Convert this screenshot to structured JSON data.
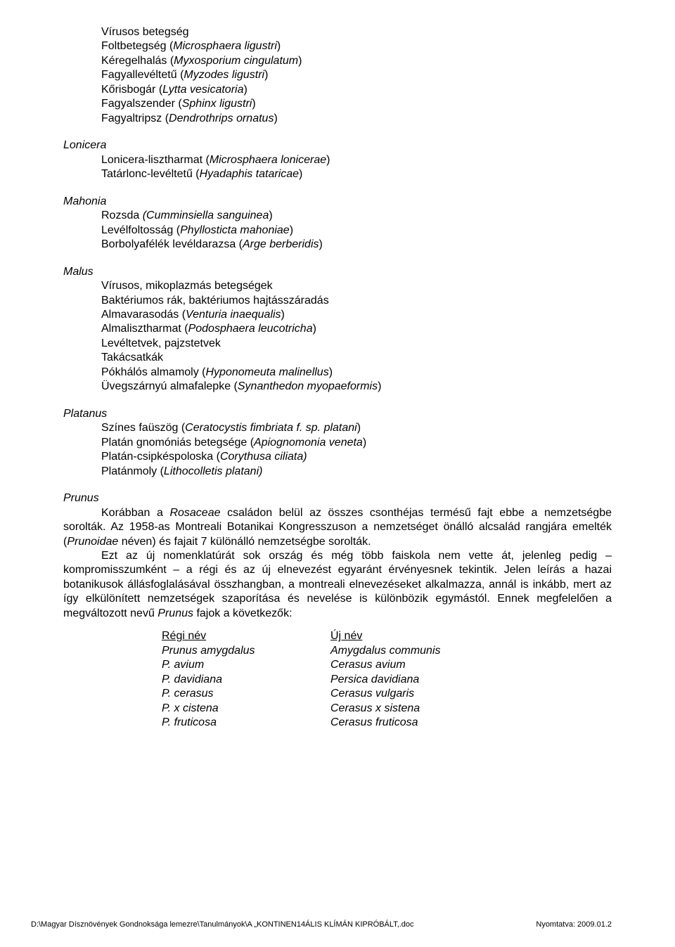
{
  "sections": {
    "top": {
      "lines": [
        {
          "text": "Vírusos betegség"
        },
        {
          "text": "Foltbetegség (",
          "after_italic": "Microsphaera ligustri",
          "after": ")"
        },
        {
          "text": "Kéregelhalás (",
          "after_italic": "Myxosporium cingulatum",
          "after": ")"
        },
        {
          "text": "Fagyallevéltetű (",
          "after_italic": "Myzodes ligustri",
          "after": ")"
        },
        {
          "text": "Kőrisbogár (",
          "after_italic": "Lytta vesicatoria",
          "after": ")"
        },
        {
          "text": "Fagyalszender (",
          "after_italic": "Sphinx ligustri",
          "after": ")"
        },
        {
          "text": "Fagyaltripsz (",
          "after_italic": "Dendrothrips ornatus",
          "after": ")"
        }
      ]
    },
    "lonicera": {
      "label": "Lonicera",
      "lines": [
        {
          "text": "Lonicera-lisztharmat (",
          "after_italic": "Microsphaera lonicerae",
          "after": ")"
        },
        {
          "text": "Tatárlonc-levéltetű (",
          "after_italic": "Hyadaphis tataricae",
          "after": ")"
        }
      ]
    },
    "mahonia": {
      "label": "Mahonia",
      "lines": [
        {
          "text": "Rozsda ",
          "after_italic": "(Cumminsiella sanguinea",
          "after": ")"
        },
        {
          "text": "Levélfoltosság (",
          "after_italic": "Phyllosticta mahoniae",
          "after": ")"
        },
        {
          "text": "Borbolyafélék levéldarazsa (",
          "after_italic": "Arge berberidis",
          "after": ")"
        }
      ]
    },
    "malus": {
      "label": "Malus",
      "lines": [
        {
          "text": "Vírusos, mikoplazmás betegségek"
        },
        {
          "text": "Baktériumos rák, baktériumos hajtásszáradás"
        },
        {
          "text": "Almavarasodás (",
          "after_italic": "Venturia inaequalis",
          "after": ")"
        },
        {
          "text": "Almalisztharmat (",
          "after_italic": "Podosphaera leucotricha",
          "after": ")"
        },
        {
          "text": "Levéltetvek, pajzstetvek"
        },
        {
          "text": "Takácsatkák"
        },
        {
          "text": "Pókhálós almamoly (",
          "after_italic": "Hyponomeuta malinellus",
          "after": ")"
        },
        {
          "text": "Üvegszárnyú almafalepke (",
          "after_italic": "Synanthedon myopaeformis",
          "after": ")"
        }
      ]
    },
    "platanus": {
      "label": "Platanus",
      "lines": [
        {
          "text": "Színes faüszög (",
          "after_italic": "Ceratocystis fimbriata f. sp. platani",
          "after": ")"
        },
        {
          "text": "Platán gnomóniás betegsége (",
          "after_italic": "Apiognomonia veneta",
          "after": ")"
        },
        {
          "text": "Platán-csipkéspoloska (",
          "after_italic": "Corythusa ciliata)",
          "after": ""
        },
        {
          "text": "Platánmoly (",
          "after_italic": "Lithocolletis platani)",
          "after": ""
        }
      ]
    },
    "prunus": {
      "label": "Prunus",
      "para1_pre": "Korábban a ",
      "para1_it1": "Rosaceae",
      "para1_mid1": " családon belül az összes csonthéjas termésű fajt ebbe a nemzetségbe sorolták. Az 1958-as Montreali Botanikai Kongresszuson a nemzetséget önálló alcsalád rangjára emelték (",
      "para1_it2": "Prunoidae",
      "para1_mid2": " néven) és fajait 7 különálló nemzetségbe sorolták.",
      "para2_pre": "Ezt az új nomenklatúrát sok ország és még több faiskola nem vette át, jelenleg pedig – kompromisszumként – a régi és az új elnevezést egyaránt érvényesnek tekintik. Jelen leírás a hazai botanikusok állásfoglalásával összhangban, a montreali elnevezéseket alkalmazza, annál is inkább, mert az így elkülönített nemzetségek szaporítása és nevelése is különbözik egymástól. Ennek megfelelően a megváltozott nevű ",
      "para2_it1": "Prunus",
      "para2_post": " fajok a következők:"
    },
    "names": {
      "header_old": "Régi név",
      "header_new": "Új név",
      "rows": [
        {
          "old": "Prunus amygdalus",
          "new": "Amygdalus communis"
        },
        {
          "old": "P. avium",
          "new": "Cerasus avium"
        },
        {
          "old": "P. davidiana",
          "new": "Persica davidiana"
        },
        {
          "old": "P. cerasus",
          "new": "Cerasus vulgaris"
        },
        {
          "old": "P. x cistena",
          "new": "Cerasus x sistena"
        },
        {
          "old": "P. fruticosa",
          "new": "Cerasus fruticosa"
        }
      ]
    }
  },
  "footer": {
    "left_pre": "D:\\Magyar Dísznövények Gondnoksága lemezre\\Tanulmányok\\A „KONTINEN",
    "page": "14",
    "left_post": "ÁLIS KLÍMÁN KIPRÓBÁLT,.doc",
    "right": "Nyomtatva: 2009.01.2"
  }
}
